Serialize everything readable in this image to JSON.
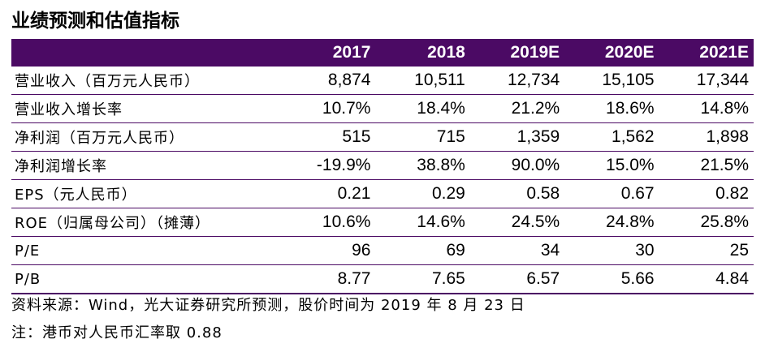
{
  "title": "业绩预测和估值指标",
  "table": {
    "headers": [
      "",
      "2017",
      "2018",
      "2019E",
      "2020E",
      "2021E"
    ],
    "rows": [
      {
        "label": "营业收入（百万元人民币）",
        "values": [
          "8,874",
          "10,511",
          "12,734",
          "15,105",
          "17,344"
        ]
      },
      {
        "label": "营业收入增长率",
        "values": [
          "10.7%",
          "18.4%",
          "21.2%",
          "18.6%",
          "14.8%"
        ]
      },
      {
        "label": "净利润（百万元人民币）",
        "values": [
          "515",
          "715",
          "1,359",
          "1,562",
          "1,898"
        ]
      },
      {
        "label": "净利润增长率",
        "values": [
          "-19.9%",
          "38.8%",
          "90.0%",
          "15.0%",
          "21.5%"
        ]
      },
      {
        "label": "EPS（元人民币）",
        "values": [
          "0.21",
          "0.29",
          "0.58",
          "0.67",
          "0.82"
        ]
      },
      {
        "label": "ROE（归属母公司）（摊薄）",
        "values": [
          "10.6%",
          "14.6%",
          "24.5%",
          "24.8%",
          "25.8%"
        ]
      },
      {
        "label": "P/E",
        "values": [
          "96",
          "69",
          "34",
          "30",
          "25"
        ]
      },
      {
        "label": "P/B",
        "values": [
          "8.77",
          "7.65",
          "6.57",
          "5.66",
          "4.84"
        ]
      }
    ]
  },
  "footnotes": {
    "source": "资料来源：Wind，光大证券研究所预测，股价时间为 2019 年 8 月 23 日",
    "note": "注：港币对人民币汇率取 0.88"
  },
  "colors": {
    "header_bg": "#4b0a64",
    "header_text": "#ffffff",
    "row_divider": "#4b0a64"
  }
}
